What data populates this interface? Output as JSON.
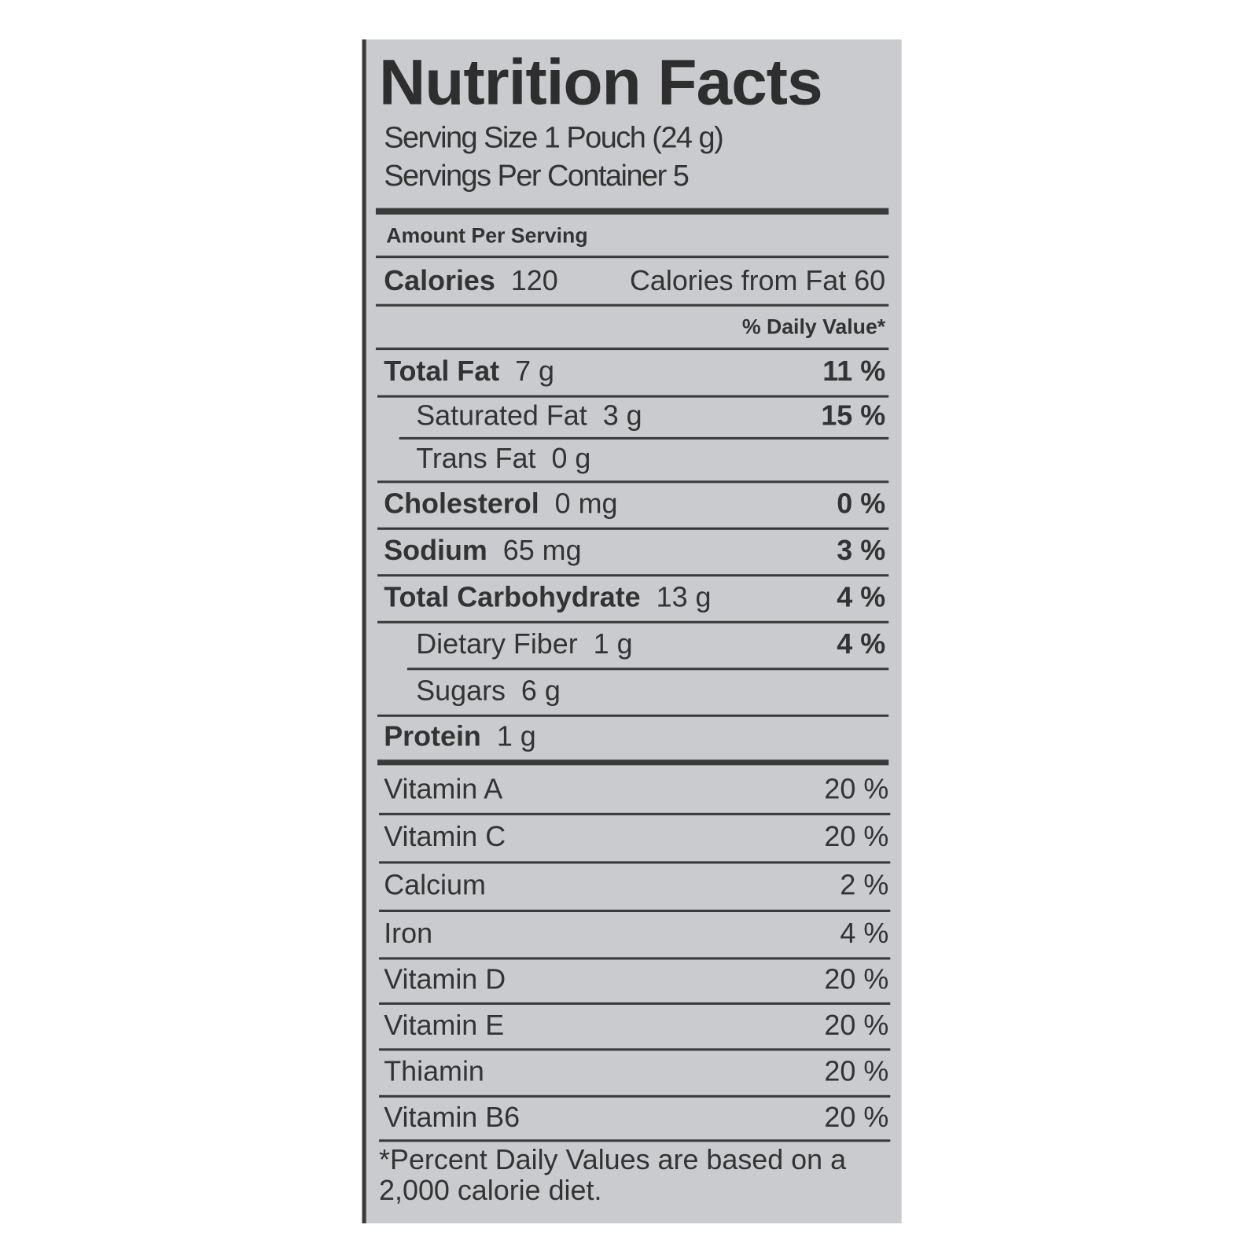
{
  "title": "Nutrition Facts",
  "serving_size": "Serving Size 1 Pouch (24 g)",
  "servings_per_container": "Servings Per Container 5",
  "amount_per_serving": "Amount Per Serving",
  "calories": {
    "label": "Calories",
    "value": "120",
    "from_fat": "Calories from Fat 60"
  },
  "daily_value_header": "% Daily Value*",
  "nutrients": [
    {
      "label": "Total Fat",
      "amount": "7 g",
      "dv": "11 %"
    },
    {
      "label": "Saturated Fat",
      "amount": "3 g",
      "dv": "15 %"
    },
    {
      "label": "Trans Fat",
      "amount": "0 g",
      "dv": ""
    },
    {
      "label": "Cholesterol",
      "amount": "0 mg",
      "dv": "0 %"
    },
    {
      "label": "Sodium",
      "amount": "65 mg",
      "dv": "3 %"
    },
    {
      "label": "Total Carbohydrate",
      "amount": "13 g",
      "dv": "4 %"
    },
    {
      "label": "Dietary Fiber",
      "amount": "1 g",
      "dv": "4 %"
    },
    {
      "label": "Sugars",
      "amount": "6 g",
      "dv": ""
    },
    {
      "label": "Protein",
      "amount": "1 g",
      "dv": ""
    }
  ],
  "vitamins": [
    {
      "label": "Vitamin A",
      "dv": "20 %"
    },
    {
      "label": "Vitamin C",
      "dv": "20 %"
    },
    {
      "label": "Calcium",
      "dv": "2 %"
    },
    {
      "label": "Iron",
      "dv": "4 %"
    },
    {
      "label": "Vitamin D",
      "dv": "20 %"
    },
    {
      "label": "Vitamin E",
      "dv": "20 %"
    },
    {
      "label": "Thiamin",
      "dv": "20 %"
    },
    {
      "label": "Vitamin B6",
      "dv": "20 %"
    }
  ],
  "footnote": "*Percent Daily Values are based on a 2,000 calorie diet.",
  "colors": {
    "background": "#c9cbce",
    "text": "#333333"
  }
}
